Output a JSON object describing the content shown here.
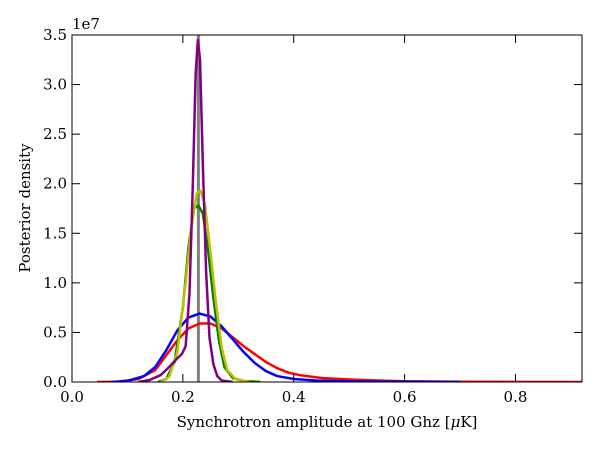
{
  "chart_data": {
    "type": "line",
    "title": "",
    "xlabel": "Synchrotron amplitude at 100 Ghz [",
    "xlabel_mu": "μ",
    "xlabel_unit": "K]",
    "ylabel": "Posterior density",
    "y_offset_label": "1e7",
    "xlim": [
      0.0,
      0.92
    ],
    "ylim": [
      0.0,
      3.5
    ],
    "x_ticks": [
      0.0,
      0.2,
      0.4,
      0.6,
      0.8
    ],
    "x_tick_labels": [
      "0.0",
      "0.2",
      "0.4",
      "0.6",
      "0.8"
    ],
    "y_ticks": [
      0.0,
      0.5,
      1.0,
      1.5,
      2.0,
      2.5,
      3.0,
      3.5
    ],
    "y_tick_labels": [
      "0.0",
      "0.5",
      "1.0",
      "1.5",
      "2.0",
      "2.5",
      "3.0",
      "3.5"
    ],
    "grid": false,
    "legend": "none",
    "truth_line": {
      "x": 0.228,
      "ymax": 3.5,
      "color": "#808080"
    },
    "series": [
      {
        "color": "#ff0000",
        "points": [
          [
            0.045,
            0.0
          ],
          [
            0.08,
            0.002
          ],
          [
            0.12,
            0.03
          ],
          [
            0.15,
            0.12
          ],
          [
            0.17,
            0.27
          ],
          [
            0.19,
            0.42
          ],
          [
            0.21,
            0.54
          ],
          [
            0.23,
            0.59
          ],
          [
            0.25,
            0.59
          ],
          [
            0.27,
            0.54
          ],
          [
            0.29,
            0.45
          ],
          [
            0.31,
            0.36
          ],
          [
            0.33,
            0.28
          ],
          [
            0.35,
            0.2
          ],
          [
            0.37,
            0.14
          ],
          [
            0.39,
            0.095
          ],
          [
            0.41,
            0.07
          ],
          [
            0.45,
            0.04
          ],
          [
            0.5,
            0.025
          ],
          [
            0.55,
            0.015
          ],
          [
            0.6,
            0.008
          ],
          [
            0.7,
            0.003
          ],
          [
            0.8,
            0.001
          ],
          [
            0.92,
            0.0
          ]
        ]
      },
      {
        "color": "#0000ff",
        "points": [
          [
            0.07,
            0.0
          ],
          [
            0.1,
            0.01
          ],
          [
            0.13,
            0.06
          ],
          [
            0.15,
            0.15
          ],
          [
            0.17,
            0.32
          ],
          [
            0.19,
            0.52
          ],
          [
            0.21,
            0.65
          ],
          [
            0.23,
            0.69
          ],
          [
            0.25,
            0.66
          ],
          [
            0.27,
            0.56
          ],
          [
            0.29,
            0.43
          ],
          [
            0.31,
            0.3
          ],
          [
            0.33,
            0.19
          ],
          [
            0.35,
            0.11
          ],
          [
            0.37,
            0.06
          ],
          [
            0.4,
            0.03
          ],
          [
            0.45,
            0.012
          ],
          [
            0.5,
            0.006
          ],
          [
            0.6,
            0.002
          ],
          [
            0.7,
            0.0
          ]
        ]
      },
      {
        "color": "#008000",
        "points": [
          [
            0.155,
            0.0
          ],
          [
            0.17,
            0.03
          ],
          [
            0.185,
            0.2
          ],
          [
            0.2,
            0.75
          ],
          [
            0.21,
            1.35
          ],
          [
            0.22,
            1.75
          ],
          [
            0.228,
            1.78
          ],
          [
            0.236,
            1.7
          ],
          [
            0.245,
            1.35
          ],
          [
            0.255,
            0.85
          ],
          [
            0.265,
            0.42
          ],
          [
            0.275,
            0.15
          ],
          [
            0.29,
            0.04
          ],
          [
            0.31,
            0.01
          ],
          [
            0.34,
            0.0
          ]
        ]
      },
      {
        "color": "#bfbf00",
        "points": [
          [
            0.16,
            0.0
          ],
          [
            0.175,
            0.05
          ],
          [
            0.19,
            0.3
          ],
          [
            0.205,
            1.0
          ],
          [
            0.215,
            1.55
          ],
          [
            0.225,
            1.9
          ],
          [
            0.232,
            1.93
          ],
          [
            0.24,
            1.78
          ],
          [
            0.25,
            1.3
          ],
          [
            0.26,
            0.78
          ],
          [
            0.27,
            0.35
          ],
          [
            0.28,
            0.12
          ],
          [
            0.295,
            0.03
          ],
          [
            0.32,
            0.0
          ]
        ]
      },
      {
        "color": "#800080",
        "points": [
          [
            0.12,
            0.0
          ],
          [
            0.14,
            0.02
          ],
          [
            0.16,
            0.07
          ],
          [
            0.175,
            0.15
          ],
          [
            0.19,
            0.24
          ],
          [
            0.198,
            0.28
          ],
          [
            0.205,
            0.36
          ],
          [
            0.212,
            0.9
          ],
          [
            0.218,
            2.0
          ],
          [
            0.223,
            3.1
          ],
          [
            0.227,
            3.45
          ],
          [
            0.231,
            3.25
          ],
          [
            0.236,
            2.2
          ],
          [
            0.242,
            1.1
          ],
          [
            0.248,
            0.45
          ],
          [
            0.255,
            0.18
          ],
          [
            0.262,
            0.06
          ],
          [
            0.27,
            0.015
          ],
          [
            0.29,
            0.0
          ]
        ]
      }
    ]
  }
}
